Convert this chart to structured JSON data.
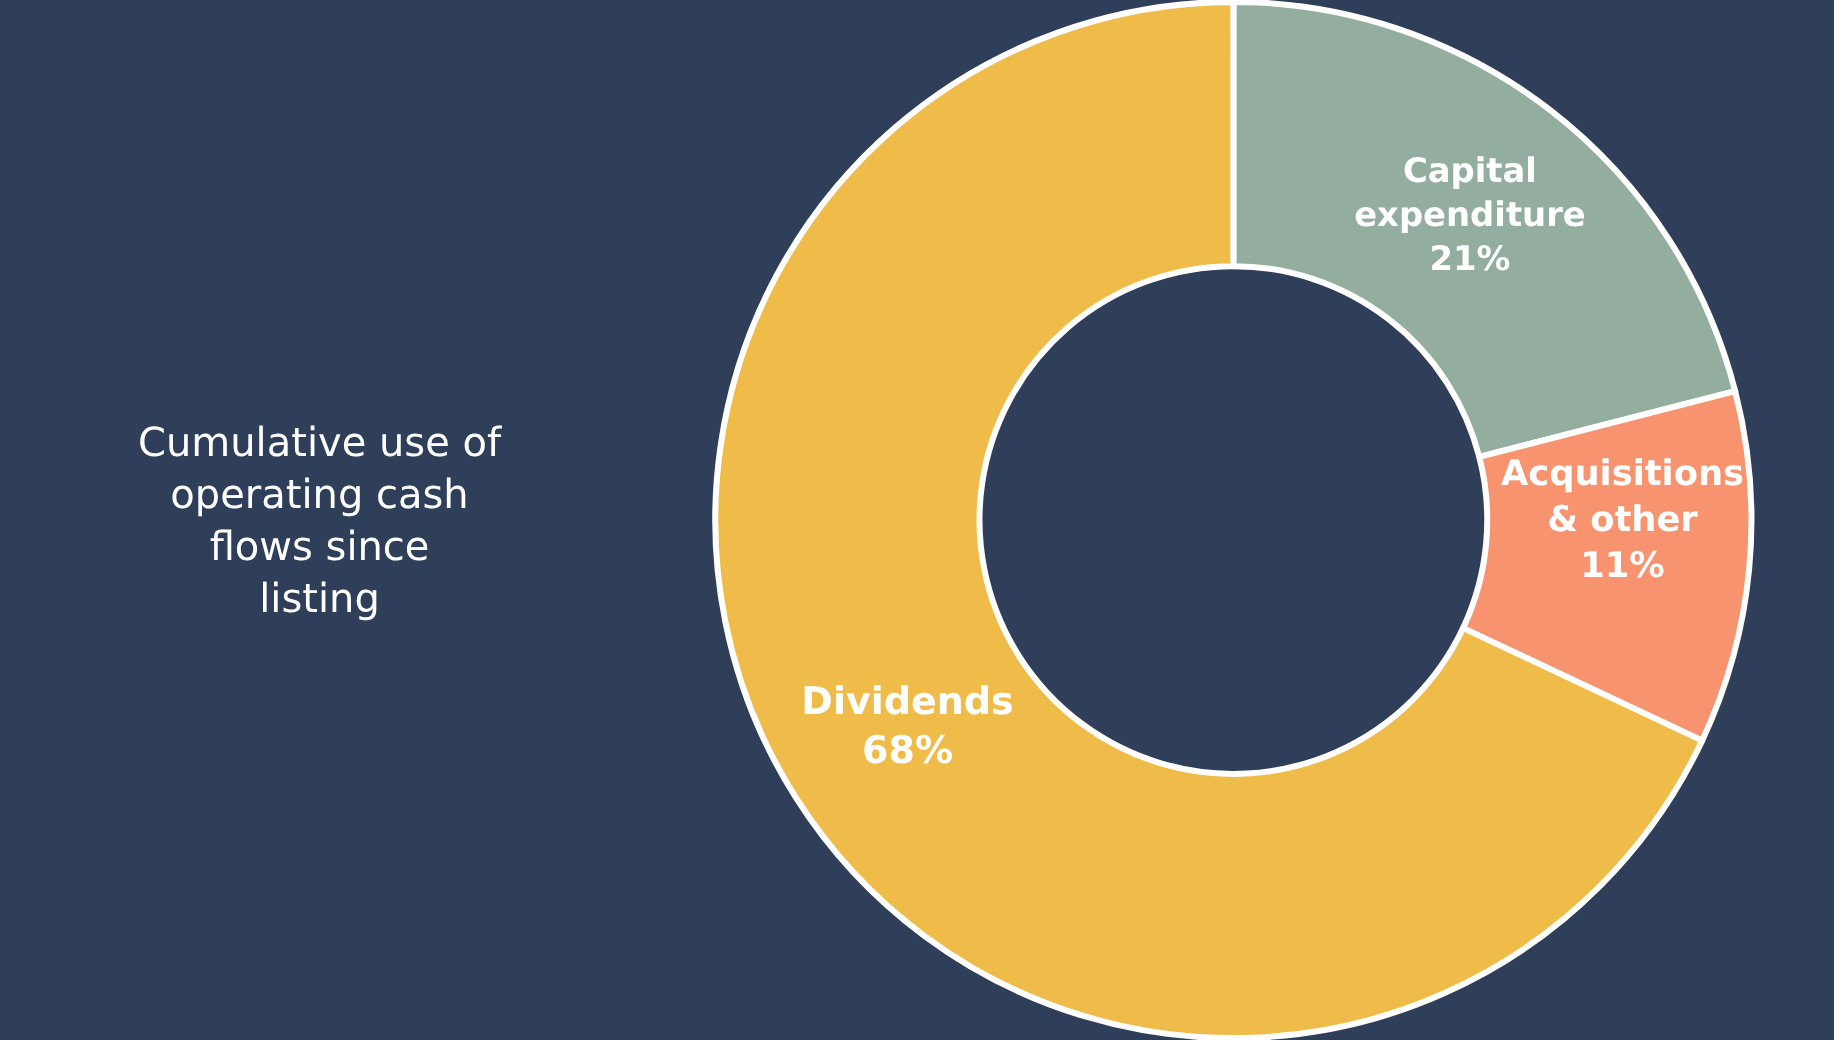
{
  "chart_data": {
    "type": "donut",
    "title": "Cumulative use of operating cash flows since listing",
    "categories": [
      "Capital expenditure",
      "Acquisitions & other",
      "Dividends"
    ],
    "values": [
      21,
      11,
      68
    ],
    "value_labels": [
      "21%",
      "11%",
      "68%"
    ],
    "colors": [
      "#93ae9e",
      "#f7946f",
      "#f0bc49"
    ],
    "legend": false
  }
}
